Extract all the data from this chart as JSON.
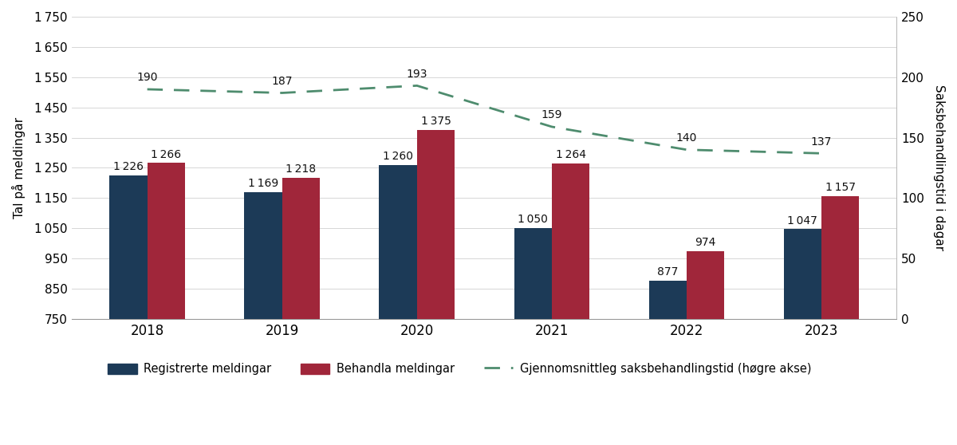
{
  "years": [
    2018,
    2019,
    2020,
    2021,
    2022,
    2023
  ],
  "registered": [
    1226,
    1169,
    1260,
    1050,
    877,
    1047
  ],
  "processed": [
    1266,
    1218,
    1375,
    1264,
    974,
    1157
  ],
  "avg_days": [
    190,
    187,
    193,
    159,
    140,
    137
  ],
  "bar_width": 0.28,
  "color_registered": "#1c3a57",
  "color_processed": "#a0263a",
  "color_line": "#4e8c6e",
  "ylabel_left": "Tal på meldingar",
  "ylabel_right": "Saksbehandlingstid i dagar",
  "ylim_left": [
    750,
    1750
  ],
  "ylim_right": [
    0,
    250
  ],
  "yticks_left": [
    750,
    850,
    950,
    1050,
    1150,
    1250,
    1350,
    1450,
    1550,
    1650,
    1750
  ],
  "yticks_right": [
    0,
    50,
    100,
    150,
    200,
    250
  ],
  "legend_registered": "Registrerte meldingar",
  "legend_processed": "Behandla meldingar",
  "legend_line": "Gjennomsnittleg saksbehandlingstid (høgre akse)",
  "background_color": "#ffffff",
  "grid_color": "#d0d0d0",
  "label_fontsize": 10,
  "tick_fontsize": 11
}
